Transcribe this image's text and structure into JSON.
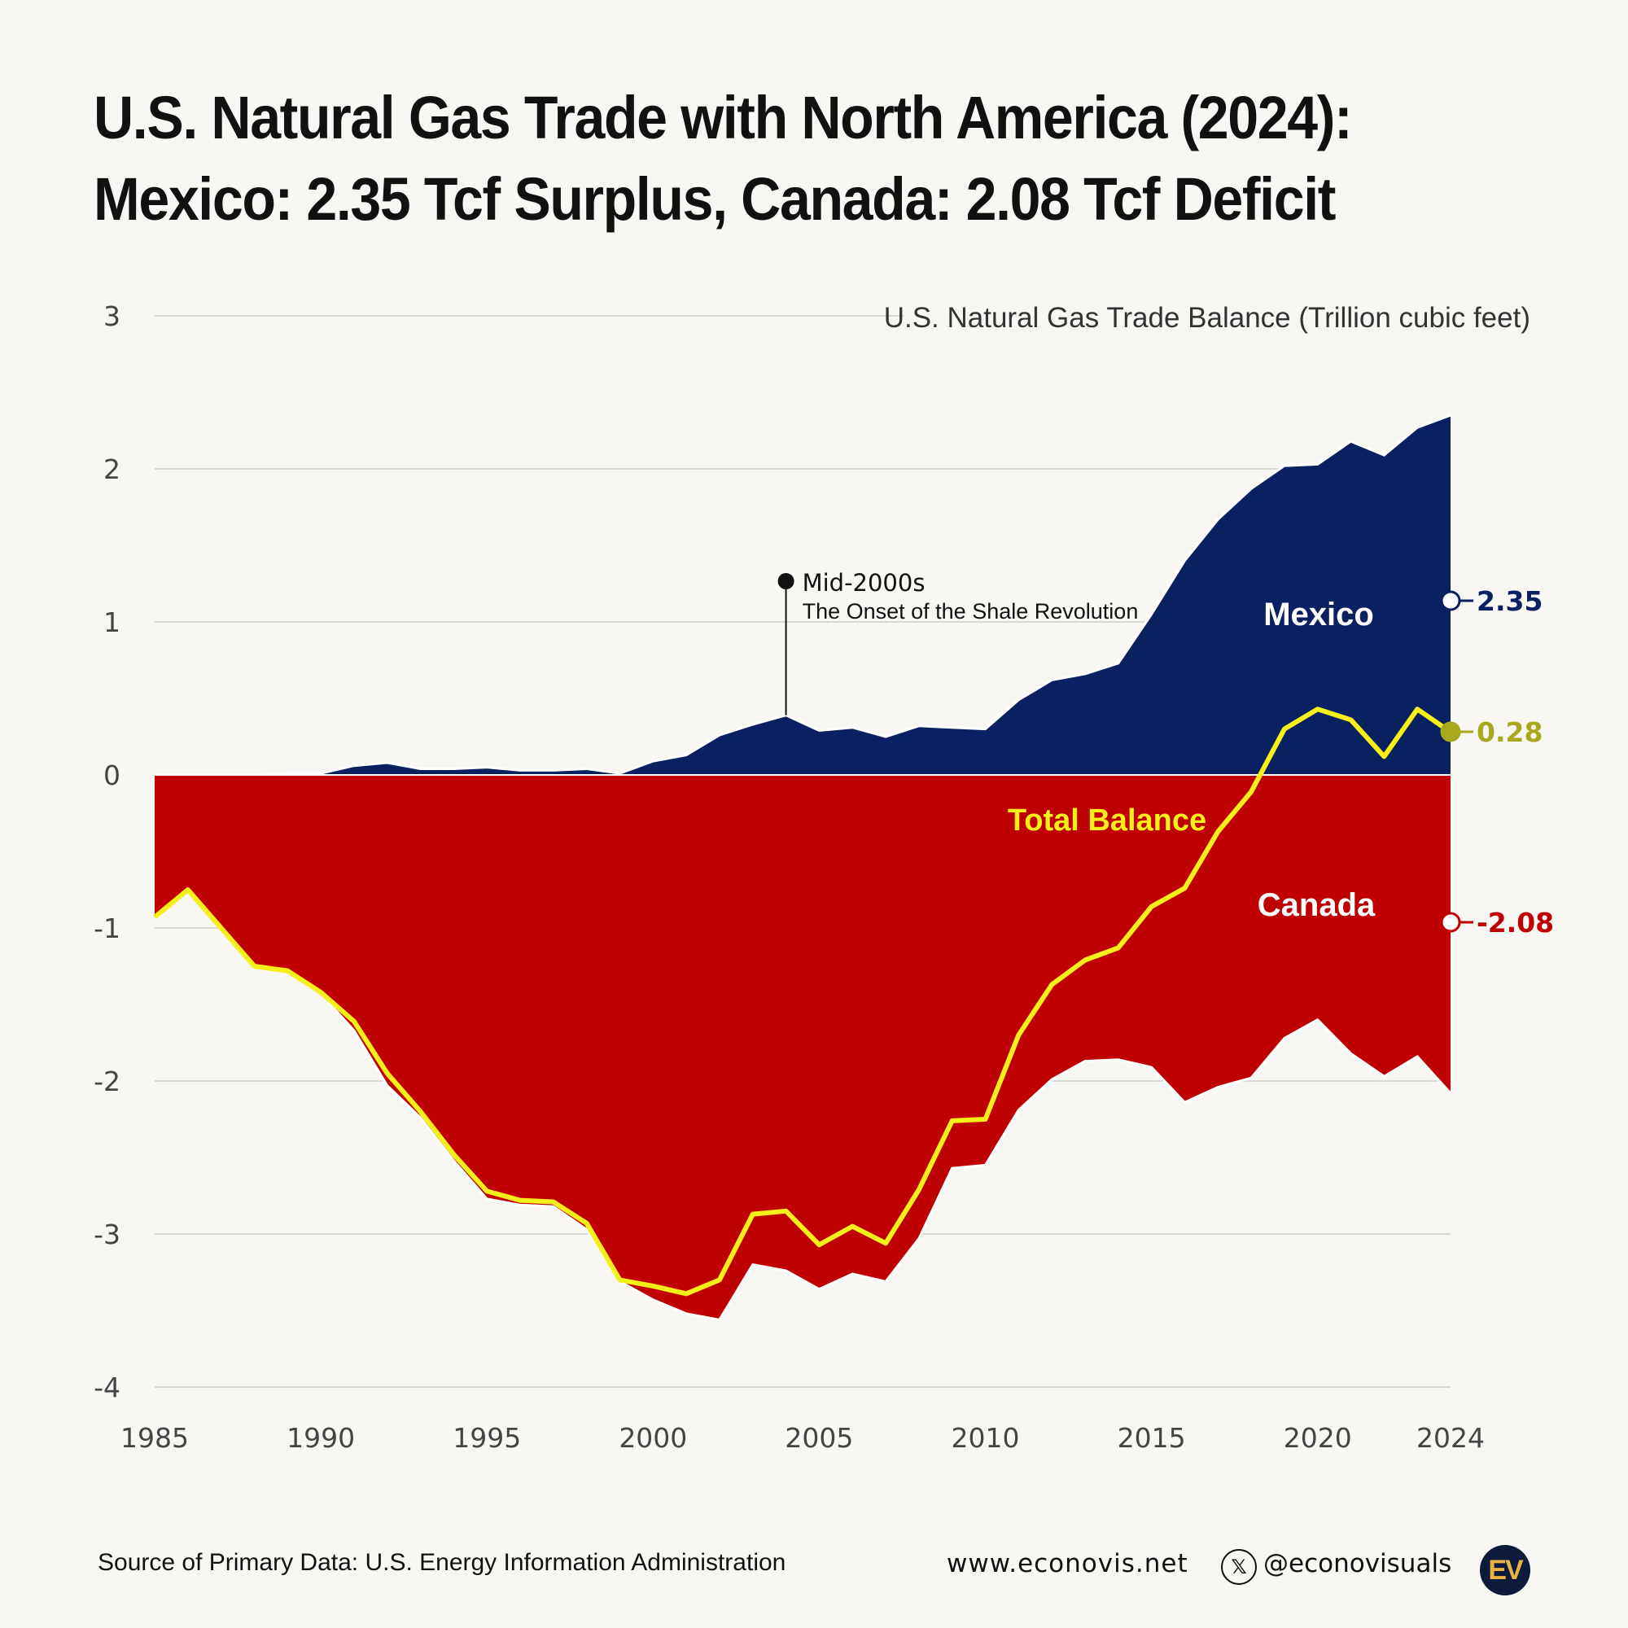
{
  "title": {
    "line1": "U.S. Natural Gas Trade with North America (2024):",
    "line2": "Mexico: 2.35 Tcf Surplus, Canada: 2.08 Tcf Deficit"
  },
  "chart_data": {
    "type": "area",
    "title": "U.S. Natural Gas Trade Balance (Trillion cubic feet)",
    "xlim": [
      1985,
      2024
    ],
    "ylim": [
      -4,
      3
    ],
    "x_ticks": [
      "1985",
      "1990",
      "1995",
      "2000",
      "2005",
      "2010",
      "2015",
      "2020",
      "2024"
    ],
    "y_ticks": [
      "3",
      "2",
      "1",
      "0",
      "-1",
      "-2",
      "-3",
      "-4"
    ],
    "years": [
      1985,
      1986,
      1987,
      1988,
      1989,
      1990,
      1991,
      1992,
      1993,
      1994,
      1995,
      1996,
      1997,
      1998,
      1999,
      2000,
      2001,
      2002,
      2003,
      2004,
      2005,
      2006,
      2007,
      2008,
      2009,
      2010,
      2011,
      2012,
      2013,
      2014,
      2015,
      2016,
      2017,
      2018,
      2019,
      2020,
      2021,
      2022,
      2023,
      2024
    ],
    "series": [
      {
        "name": "Mexico",
        "color": "#0a2161",
        "values": [
          0.0,
          0.0,
          0.0,
          0.0,
          0.01,
          0.01,
          0.06,
          0.08,
          0.04,
          0.04,
          0.05,
          0.03,
          0.03,
          0.04,
          0.01,
          0.09,
          0.13,
          0.26,
          0.33,
          0.39,
          0.29,
          0.31,
          0.25,
          0.32,
          0.31,
          0.3,
          0.49,
          0.62,
          0.66,
          0.73,
          1.05,
          1.4,
          1.67,
          1.87,
          2.02,
          2.03,
          2.18,
          2.09,
          2.27,
          2.35
        ]
      },
      {
        "name": "Canada",
        "color": "#bf0000",
        "values": [
          -0.93,
          -0.75,
          -1.0,
          -1.25,
          -1.29,
          -1.43,
          -1.67,
          -2.03,
          -2.24,
          -2.52,
          -2.77,
          -2.81,
          -2.82,
          -2.97,
          -3.31,
          -3.43,
          -3.52,
          -3.56,
          -3.2,
          -3.24,
          -3.36,
          -3.26,
          -3.31,
          -3.03,
          -2.57,
          -2.55,
          -2.19,
          -1.99,
          -1.87,
          -1.86,
          -1.91,
          -2.14,
          -2.04,
          -1.98,
          -1.72,
          -1.6,
          -1.82,
          -1.97,
          -1.84,
          -2.08
        ]
      },
      {
        "name": "Total Balance",
        "color": "#f7ef1a",
        "values": [
          -0.93,
          -0.75,
          -1.0,
          -1.25,
          -1.28,
          -1.42,
          -1.61,
          -1.95,
          -2.2,
          -2.48,
          -2.72,
          -2.78,
          -2.79,
          -2.93,
          -3.3,
          -3.34,
          -3.39,
          -3.3,
          -2.87,
          -2.85,
          -3.07,
          -2.95,
          -3.06,
          -2.71,
          -2.26,
          -2.25,
          -1.7,
          -1.37,
          -1.21,
          -1.13,
          -0.86,
          -0.74,
          -0.37,
          -0.11,
          0.3,
          0.43,
          0.36,
          0.12,
          0.43,
          0.28
        ]
      }
    ],
    "series_labels": {
      "mexico": "Mexico",
      "canada": "Canada",
      "total": "Total Balance"
    },
    "end_labels": {
      "mexico": "2.35",
      "total": "0.28",
      "canada": "-2.08"
    },
    "annotation": {
      "year": 2004,
      "title": "Mid-2000s",
      "subtitle": "The Onset of the Shale Revolution"
    }
  },
  "footer": {
    "source": "Source of Primary Data: U.S. Energy Information Administration",
    "website": "www.econovis.net",
    "x_icon": "x-logo-icon",
    "x_glyph": "𝕏",
    "handle": "@econovisuals",
    "logo": "EV"
  }
}
